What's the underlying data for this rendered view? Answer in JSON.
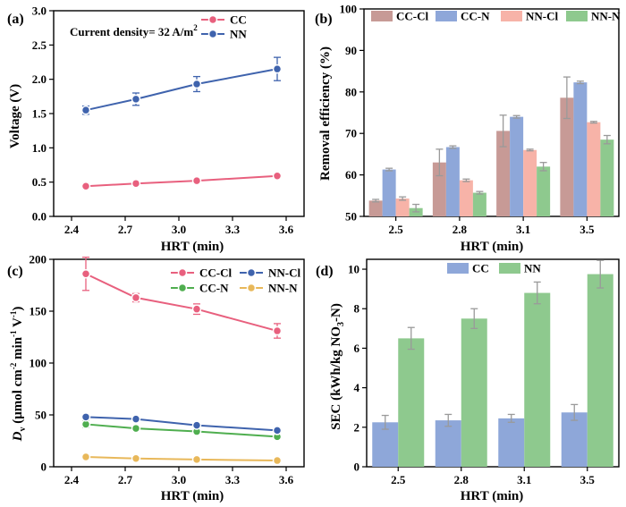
{
  "chart_data": [
    {
      "panel": "(a)",
      "type": "line",
      "xlabel": "HRT (min)",
      "ylabel": "Voltage (V)",
      "xlim": [
        2.3,
        3.7
      ],
      "ylim": [
        0,
        3.0
      ],
      "xticks": [
        "2.4",
        "2.7",
        "3.0",
        "3.3",
        "3.6"
      ],
      "yticks": [
        "0.0",
        "0.5",
        "1.0",
        "1.5",
        "2.0",
        "2.5",
        "3.0"
      ],
      "annotation": "Current density= 32 A/m",
      "annotation_sup": "2",
      "legend_position": "top-right",
      "x": [
        2.48,
        2.76,
        3.1,
        3.55
      ],
      "series": [
        {
          "name": "CC",
          "color": "#e8607e",
          "values": [
            0.44,
            0.48,
            0.52,
            0.59
          ],
          "errors": [
            0.04,
            0.03,
            0.03,
            0.03
          ]
        },
        {
          "name": "NN",
          "color": "#3f63ad",
          "values": [
            1.55,
            1.71,
            1.93,
            2.15
          ],
          "errors": [
            0.06,
            0.09,
            0.11,
            0.17
          ]
        }
      ]
    },
    {
      "panel": "(b)",
      "type": "bar",
      "xlabel": "HRT (min)",
      "ylabel": "Removal efficiency (%)",
      "ylim": [
        50,
        100
      ],
      "yticks": [
        "50",
        "60",
        "70",
        "80",
        "90",
        "100"
      ],
      "categories": [
        "2.5",
        "2.8",
        "3.1",
        "3.5"
      ],
      "legend_position": "top",
      "series": [
        {
          "name": "CC-Cl",
          "color": "#c79a96",
          "values": [
            53.8,
            63.0,
            70.6,
            78.6
          ],
          "errors": [
            0.3,
            3.2,
            3.8,
            5.0
          ]
        },
        {
          "name": "CC-N",
          "color": "#8ea7d9",
          "values": [
            61.3,
            66.7,
            74.0,
            82.3
          ],
          "errors": [
            0.3,
            0.3,
            0.3,
            0.3
          ]
        },
        {
          "name": "NN-Cl",
          "color": "#f7b3a8",
          "values": [
            54.3,
            58.7,
            66.0,
            72.7
          ],
          "errors": [
            0.4,
            0.3,
            0.2,
            0.2
          ]
        },
        {
          "name": "NN-N",
          "color": "#8ec98e",
          "values": [
            52.0,
            55.7,
            62.0,
            68.5
          ],
          "errors": [
            0.9,
            0.3,
            1.0,
            1.0
          ]
        }
      ]
    },
    {
      "panel": "(c)",
      "type": "line",
      "xlabel": "HRT (min)",
      "ylabel_main": "D",
      "ylabel_sub": "v",
      "ylabel_rest": " (μmol cm",
      "ylabel_sup1": "-2",
      "ylabel_mid": " min",
      "ylabel_sup2": "-1",
      "ylabel_v": " V",
      "ylabel_sup3": "-1",
      "ylabel_end": ")",
      "xlim": [
        2.3,
        3.7
      ],
      "ylim": [
        0,
        200
      ],
      "xticks": [
        "2.4",
        "2.7",
        "3.0",
        "3.3",
        "3.6"
      ],
      "yticks": [
        "0",
        "50",
        "100",
        "150",
        "200"
      ],
      "legend_position": "top-right",
      "x": [
        2.48,
        2.76,
        3.1,
        3.55
      ],
      "series": [
        {
          "name": "CC-Cl",
          "color": "#e8607e",
          "values": [
            186,
            163,
            152,
            131
          ],
          "errors": [
            16,
            4,
            5,
            7
          ]
        },
        {
          "name": "CC-N",
          "color": "#4fae4f",
          "values": [
            41,
            37,
            34,
            29
          ],
          "errors": [
            3,
            2,
            2,
            2
          ]
        },
        {
          "name": "NN-Cl",
          "color": "#3f63ad",
          "values": [
            48,
            46,
            40,
            35
          ],
          "errors": [
            2,
            2,
            2,
            2
          ]
        },
        {
          "name": "NN-N",
          "color": "#e8b85a",
          "values": [
            9.5,
            8,
            7,
            6
          ],
          "errors": [
            1,
            1,
            1,
            1
          ]
        }
      ]
    },
    {
      "panel": "(d)",
      "type": "bar",
      "xlabel": "HRT (min)",
      "ylabel_main": "SEC (kWh/kg NO",
      "ylabel_sub": "3",
      "ylabel_end": "-N)",
      "ylim": [
        0,
        10.5
      ],
      "yticks": [
        "0",
        "2",
        "4",
        "6",
        "8",
        "10"
      ],
      "categories": [
        "2.5",
        "2.8",
        "3.1",
        "3.5"
      ],
      "legend_position": "top",
      "series": [
        {
          "name": "CC",
          "color": "#8ea7d9",
          "values": [
            2.25,
            2.35,
            2.45,
            2.75
          ],
          "errors": [
            0.35,
            0.3,
            0.2,
            0.4
          ]
        },
        {
          "name": "NN",
          "color": "#8ec98e",
          "values": [
            6.5,
            7.5,
            8.8,
            9.75
          ],
          "errors": [
            0.55,
            0.5,
            0.55,
            0.7
          ]
        }
      ]
    }
  ]
}
